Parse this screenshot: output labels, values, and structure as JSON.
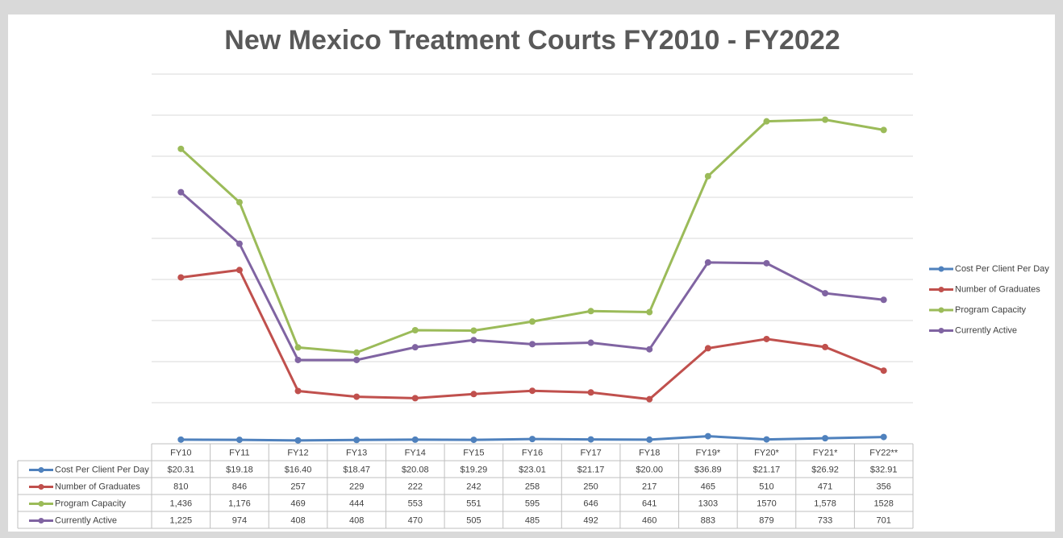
{
  "chart_data": {
    "type": "line",
    "title": "New Mexico Treatment Courts FY2010 - FY2022",
    "categories": [
      "FY10",
      "FY11",
      "FY12",
      "FY13",
      "FY14",
      "FY15",
      "FY16",
      "FY17",
      "FY18",
      "FY19*",
      "FY20*",
      "FY21*",
      "FY22**"
    ],
    "ylim": [
      0,
      1800
    ],
    "yticks": [
      0,
      200,
      400,
      600,
      800,
      1000,
      1200,
      1400,
      1600,
      1800
    ],
    "grid": true,
    "legend": "right",
    "series": [
      {
        "name": "Cost Per Client Per Day",
        "color": "#4f81bd",
        "values": [
          20.31,
          19.18,
          16.4,
          18.47,
          20.08,
          19.29,
          23.01,
          21.17,
          20.0,
          36.89,
          21.17,
          26.92,
          32.91
        ],
        "value_labels": [
          "$20.31",
          "$19.18",
          "$16.40",
          "$18.47",
          "$20.08",
          "$19.29",
          "$23.01",
          "$21.17",
          "$20.00",
          "$36.89",
          "$21.17",
          "$26.92",
          "$32.91"
        ]
      },
      {
        "name": "Number of Graduates",
        "color": "#c0504d",
        "values": [
          810,
          846,
          257,
          229,
          222,
          242,
          258,
          250,
          217,
          465,
          510,
          471,
          356
        ]
      },
      {
        "name": "Program Capacity",
        "color": "#9bbb59",
        "values": [
          1436,
          1176,
          469,
          444,
          553,
          551,
          595,
          646,
          641,
          1303,
          1570,
          1578,
          1528
        ],
        "value_labels": [
          "1,436",
          "1,176",
          "469",
          "444",
          "553",
          "551",
          "595",
          "646",
          "641",
          "1303",
          "1570",
          "1,578",
          "1528"
        ]
      },
      {
        "name": "Currently Active",
        "color": "#8064a2",
        "values": [
          1225,
          974,
          408,
          408,
          470,
          505,
          485,
          492,
          460,
          883,
          879,
          733,
          701
        ],
        "value_labels": [
          "1,225",
          "974",
          "408",
          "408",
          "470",
          "505",
          "485",
          "492",
          "460",
          "883",
          "879",
          "733",
          "701"
        ]
      }
    ]
  }
}
